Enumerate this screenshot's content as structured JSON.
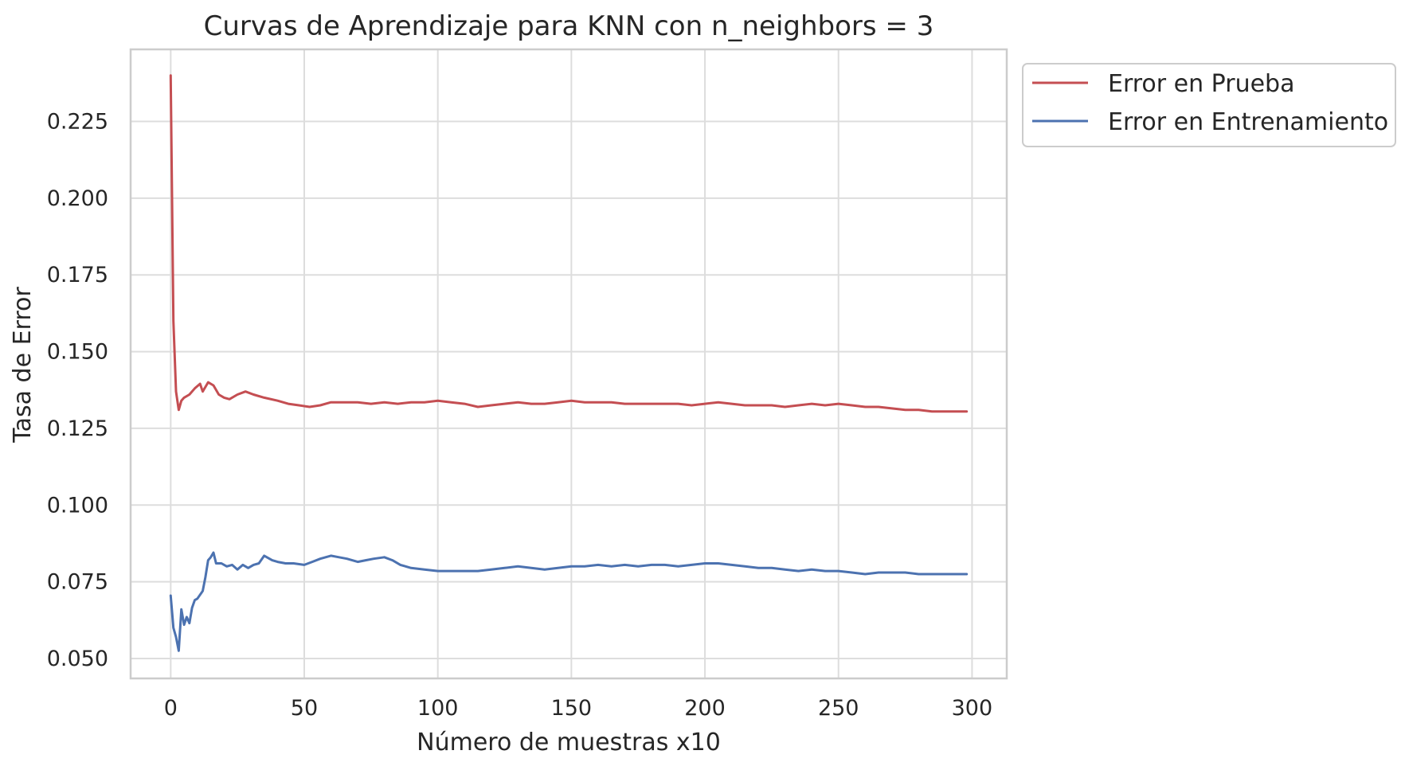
{
  "chart_data": {
    "type": "line",
    "title": "Curvas de Aprendizaje para KNN con n_neighbors = 3",
    "xlabel": "Número de muestras x10",
    "ylabel": "Tasa de Error",
    "xlim": [
      -15,
      313
    ],
    "ylim": [
      0.0435,
      0.2485
    ],
    "grid": true,
    "legend_position": "outside-upper-right",
    "x_ticks": [
      0,
      50,
      100,
      150,
      200,
      250,
      300
    ],
    "x_tick_labels": [
      "0",
      "50",
      "100",
      "150",
      "200",
      "250",
      "300"
    ],
    "y_ticks": [
      0.05,
      0.075,
      0.1,
      0.125,
      0.15,
      0.175,
      0.2,
      0.225
    ],
    "y_tick_labels": [
      "0.050",
      "0.075",
      "0.100",
      "0.125",
      "0.150",
      "0.175",
      "0.200",
      "0.225"
    ],
    "series": [
      {
        "name": "Error en Prueba",
        "color": "#c44e52",
        "points": [
          [
            0,
            0.24
          ],
          [
            1,
            0.16
          ],
          [
            2,
            0.137
          ],
          [
            3,
            0.131
          ],
          [
            4,
            0.134
          ],
          [
            5,
            0.135
          ],
          [
            7,
            0.136
          ],
          [
            9,
            0.138
          ],
          [
            11,
            0.1395
          ],
          [
            12,
            0.137
          ],
          [
            14,
            0.14
          ],
          [
            16,
            0.139
          ],
          [
            18,
            0.136
          ],
          [
            20,
            0.135
          ],
          [
            22,
            0.1345
          ],
          [
            25,
            0.136
          ],
          [
            28,
            0.137
          ],
          [
            31,
            0.136
          ],
          [
            35,
            0.135
          ],
          [
            40,
            0.134
          ],
          [
            44,
            0.133
          ],
          [
            48,
            0.1325
          ],
          [
            52,
            0.132
          ],
          [
            56,
            0.1325
          ],
          [
            60,
            0.1335
          ],
          [
            65,
            0.1335
          ],
          [
            70,
            0.1335
          ],
          [
            75,
            0.133
          ],
          [
            80,
            0.1335
          ],
          [
            85,
            0.133
          ],
          [
            90,
            0.1335
          ],
          [
            95,
            0.1335
          ],
          [
            100,
            0.134
          ],
          [
            105,
            0.1335
          ],
          [
            110,
            0.133
          ],
          [
            115,
            0.132
          ],
          [
            120,
            0.1325
          ],
          [
            125,
            0.133
          ],
          [
            130,
            0.1335
          ],
          [
            135,
            0.133
          ],
          [
            140,
            0.133
          ],
          [
            145,
            0.1335
          ],
          [
            150,
            0.134
          ],
          [
            155,
            0.1335
          ],
          [
            160,
            0.1335
          ],
          [
            165,
            0.1335
          ],
          [
            170,
            0.133
          ],
          [
            175,
            0.133
          ],
          [
            180,
            0.133
          ],
          [
            185,
            0.133
          ],
          [
            190,
            0.133
          ],
          [
            195,
            0.1325
          ],
          [
            200,
            0.133
          ],
          [
            205,
            0.1335
          ],
          [
            210,
            0.133
          ],
          [
            215,
            0.1325
          ],
          [
            220,
            0.1325
          ],
          [
            225,
            0.1325
          ],
          [
            230,
            0.132
          ],
          [
            235,
            0.1325
          ],
          [
            240,
            0.133
          ],
          [
            245,
            0.1325
          ],
          [
            250,
            0.133
          ],
          [
            255,
            0.1325
          ],
          [
            260,
            0.132
          ],
          [
            265,
            0.132
          ],
          [
            270,
            0.1315
          ],
          [
            275,
            0.131
          ],
          [
            280,
            0.131
          ],
          [
            285,
            0.1305
          ],
          [
            290,
            0.1305
          ],
          [
            295,
            0.1305
          ],
          [
            298,
            0.1305
          ]
        ]
      },
      {
        "name": "Error en Entrenamiento",
        "color": "#4c72b0",
        "points": [
          [
            0,
            0.0705
          ],
          [
            1,
            0.06
          ],
          [
            2,
            0.057
          ],
          [
            3,
            0.0525
          ],
          [
            4,
            0.066
          ],
          [
            5,
            0.061
          ],
          [
            6,
            0.0635
          ],
          [
            7,
            0.0615
          ],
          [
            8,
            0.0665
          ],
          [
            9,
            0.069
          ],
          [
            10,
            0.0695
          ],
          [
            12,
            0.072
          ],
          [
            13,
            0.0765
          ],
          [
            14,
            0.082
          ],
          [
            15,
            0.083
          ],
          [
            16,
            0.0845
          ],
          [
            17,
            0.081
          ],
          [
            19,
            0.081
          ],
          [
            21,
            0.08
          ],
          [
            23,
            0.0805
          ],
          [
            25,
            0.079
          ],
          [
            27,
            0.0805
          ],
          [
            29,
            0.0795
          ],
          [
            31,
            0.0805
          ],
          [
            33,
            0.081
          ],
          [
            35,
            0.0835
          ],
          [
            38,
            0.082
          ],
          [
            40,
            0.0815
          ],
          [
            43,
            0.081
          ],
          [
            46,
            0.081
          ],
          [
            50,
            0.0805
          ],
          [
            53,
            0.0815
          ],
          [
            56,
            0.0825
          ],
          [
            60,
            0.0835
          ],
          [
            63,
            0.083
          ],
          [
            66,
            0.0825
          ],
          [
            70,
            0.0815
          ],
          [
            73,
            0.082
          ],
          [
            76,
            0.0825
          ],
          [
            80,
            0.083
          ],
          [
            83,
            0.082
          ],
          [
            86,
            0.0805
          ],
          [
            90,
            0.0795
          ],
          [
            95,
            0.079
          ],
          [
            100,
            0.0785
          ],
          [
            105,
            0.0785
          ],
          [
            110,
            0.0785
          ],
          [
            115,
            0.0785
          ],
          [
            120,
            0.079
          ],
          [
            125,
            0.0795
          ],
          [
            130,
            0.08
          ],
          [
            135,
            0.0795
          ],
          [
            140,
            0.079
          ],
          [
            145,
            0.0795
          ],
          [
            150,
            0.08
          ],
          [
            155,
            0.08
          ],
          [
            160,
            0.0805
          ],
          [
            165,
            0.08
          ],
          [
            170,
            0.0805
          ],
          [
            175,
            0.08
          ],
          [
            180,
            0.0805
          ],
          [
            185,
            0.0805
          ],
          [
            190,
            0.08
          ],
          [
            195,
            0.0805
          ],
          [
            200,
            0.081
          ],
          [
            205,
            0.081
          ],
          [
            210,
            0.0805
          ],
          [
            215,
            0.08
          ],
          [
            220,
            0.0795
          ],
          [
            225,
            0.0795
          ],
          [
            230,
            0.079
          ],
          [
            235,
            0.0785
          ],
          [
            240,
            0.079
          ],
          [
            245,
            0.0785
          ],
          [
            250,
            0.0785
          ],
          [
            255,
            0.078
          ],
          [
            260,
            0.0775
          ],
          [
            265,
            0.078
          ],
          [
            270,
            0.078
          ],
          [
            275,
            0.078
          ],
          [
            280,
            0.0775
          ],
          [
            285,
            0.0775
          ],
          [
            290,
            0.0775
          ],
          [
            295,
            0.0775
          ],
          [
            298,
            0.0775
          ]
        ]
      }
    ]
  }
}
